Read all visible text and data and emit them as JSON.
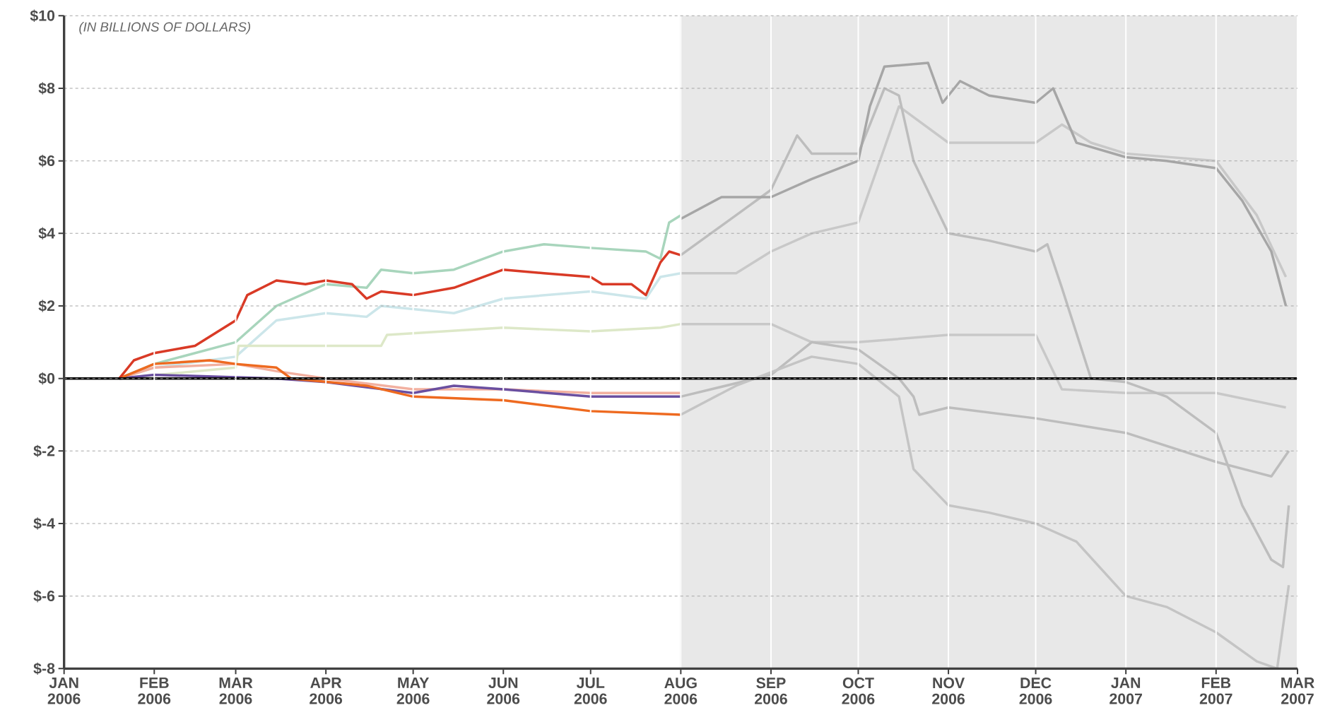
{
  "chart_data": {
    "type": "line",
    "annotations": [
      "(IN BILLIONS OF DOLLARS)"
    ],
    "xlim": [
      "2006-01-01",
      "2007-03-01"
    ],
    "xticks": [
      {
        "value": "2006-01-01",
        "label": "JAN 2006"
      },
      {
        "value": "2006-02-01",
        "label": "FEB 2006"
      },
      {
        "value": "2006-03-01",
        "label": "MAR 2006"
      },
      {
        "value": "2006-04-01",
        "label": "APR 2006"
      },
      {
        "value": "2006-05-01",
        "label": "MAY 2006"
      },
      {
        "value": "2006-06-01",
        "label": "JUN 2006"
      },
      {
        "value": "2006-07-01",
        "label": "JUL 2006"
      },
      {
        "value": "2006-08-01",
        "label": "AUG 2006"
      },
      {
        "value": "2006-09-01",
        "label": "SEP 2006"
      },
      {
        "value": "2006-10-01",
        "label": "OCT 2006"
      },
      {
        "value": "2006-11-01",
        "label": "NOV 2006"
      },
      {
        "value": "2006-12-01",
        "label": "DEC 2006"
      },
      {
        "value": "2007-01-01",
        "label": "JAN 2007"
      },
      {
        "value": "2007-02-01",
        "label": "FEB 2007"
      },
      {
        "value": "2007-03-01",
        "label": "MAR 2007"
      }
    ],
    "ylim": [
      -8,
      10
    ],
    "yticks": [
      {
        "value": -8,
        "label": "$-8"
      },
      {
        "value": -6,
        "label": "$-6"
      },
      {
        "value": -4,
        "label": "$-4"
      },
      {
        "value": -2,
        "label": "$-2"
      },
      {
        "value": 0,
        "label": "$0"
      },
      {
        "value": 2,
        "label": "$2"
      },
      {
        "value": 4,
        "label": "$4"
      },
      {
        "value": 6,
        "label": "$6"
      },
      {
        "value": 8,
        "label": "$8"
      },
      {
        "value": 10,
        "label": "$10"
      }
    ],
    "grid": true,
    "bands": [
      {
        "axis": "x",
        "from": "2006-08-01",
        "to": "2007-03-01",
        "color": "#e8e8e8"
      }
    ],
    "ref_lines": [
      {
        "axis": "y",
        "value": 0,
        "color": "#000000"
      },
      {
        "axis": "x",
        "value": "2006-08-01",
        "color": "#bfbfbf"
      }
    ],
    "series": [
      {
        "color": "#a8d5bc",
        "x": [
          "2006-01-20",
          "2006-02-01",
          "2006-03-01",
          "2006-03-15",
          "2006-04-01",
          "2006-04-15",
          "2006-04-20",
          "2006-05-01",
          "2006-05-15",
          "2006-06-01",
          "2006-06-15",
          "2006-07-01",
          "2006-07-20",
          "2006-07-25",
          "2006-07-28",
          "2006-08-01"
        ],
        "values": [
          0,
          0.4,
          1.0,
          2.0,
          2.6,
          2.5,
          3.0,
          2.9,
          3.0,
          3.5,
          3.7,
          3.6,
          3.5,
          3.3,
          4.3,
          4.5
        ]
      },
      {
        "color": "#cce6ea",
        "x": [
          "2006-01-20",
          "2006-02-01",
          "2006-03-01",
          "2006-03-15",
          "2006-04-01",
          "2006-04-15",
          "2006-04-20",
          "2006-05-15",
          "2006-06-01",
          "2006-07-01",
          "2006-07-20",
          "2006-07-25",
          "2006-08-01"
        ],
        "values": [
          0,
          0.3,
          0.6,
          1.6,
          1.8,
          1.7,
          2.0,
          1.8,
          2.2,
          2.4,
          2.2,
          2.8,
          2.9
        ]
      },
      {
        "color": "#dde8c8",
        "x": [
          "2006-01-20",
          "2006-03-01",
          "2006-03-02",
          "2006-04-20",
          "2006-04-22",
          "2006-06-01",
          "2006-07-01",
          "2006-07-25",
          "2006-08-01"
        ],
        "values": [
          0,
          0.3,
          0.9,
          0.9,
          1.2,
          1.4,
          1.3,
          1.4,
          1.5
        ]
      },
      {
        "color": "#f2b0a0",
        "x": [
          "2006-01-20",
          "2006-02-01",
          "2006-03-01",
          "2006-03-15",
          "2006-04-01",
          "2006-05-01",
          "2006-06-01",
          "2006-07-01",
          "2006-08-01"
        ],
        "values": [
          0,
          0.3,
          0.4,
          0.2,
          0.0,
          -0.3,
          -0.3,
          -0.4,
          -0.4
        ]
      },
      {
        "color": "#6a4fa0",
        "x": [
          "2006-01-20",
          "2006-02-01",
          "2006-03-15",
          "2006-04-01",
          "2006-05-01",
          "2006-05-15",
          "2006-06-01",
          "2006-07-01",
          "2006-08-01"
        ],
        "values": [
          0,
          0.1,
          0.0,
          -0.1,
          -0.4,
          -0.2,
          -0.3,
          -0.5,
          -0.5
        ]
      },
      {
        "color": "#ee6a20",
        "x": [
          "2006-01-20",
          "2006-02-01",
          "2006-02-20",
          "2006-03-01",
          "2006-03-15",
          "2006-03-20",
          "2006-04-15",
          "2006-05-01",
          "2006-06-01",
          "2006-07-01",
          "2006-08-01"
        ],
        "values": [
          0,
          0.4,
          0.5,
          0.4,
          0.3,
          0.0,
          -0.2,
          -0.5,
          -0.6,
          -0.9,
          -1.0
        ]
      },
      {
        "color": "#d93a26",
        "x": [
          "2006-01-20",
          "2006-01-25",
          "2006-02-01",
          "2006-02-15",
          "2006-03-01",
          "2006-03-05",
          "2006-03-15",
          "2006-03-25",
          "2006-04-01",
          "2006-04-10",
          "2006-04-15",
          "2006-04-20",
          "2006-05-01",
          "2006-05-15",
          "2006-06-01",
          "2006-06-15",
          "2006-07-01",
          "2006-07-05",
          "2006-07-15",
          "2006-07-20",
          "2006-07-25",
          "2006-07-28",
          "2006-08-01"
        ],
        "values": [
          0,
          0.5,
          0.7,
          0.9,
          1.6,
          2.3,
          2.7,
          2.6,
          2.7,
          2.6,
          2.2,
          2.4,
          2.3,
          2.5,
          3.0,
          2.9,
          2.8,
          2.6,
          2.6,
          2.3,
          3.2,
          3.5,
          3.4
        ]
      },
      {
        "color": "#c8c8c8",
        "x": [
          "2006-08-01",
          "2006-08-20",
          "2006-09-01",
          "2006-09-15",
          "2006-10-01",
          "2006-10-15",
          "2006-11-01",
          "2006-11-15",
          "2006-12-01",
          "2006-12-10",
          "2006-12-20",
          "2007-01-01",
          "2007-02-01",
          "2007-02-15",
          "2007-02-25"
        ],
        "values": [
          2.9,
          2.9,
          3.5,
          4.0,
          4.3,
          7.5,
          6.5,
          6.5,
          6.5,
          7.0,
          6.5,
          6.2,
          6.0,
          4.5,
          2.8
        ]
      },
      {
        "color": "#c8c8c8",
        "x": [
          "2006-08-01",
          "2006-09-01",
          "2006-09-15",
          "2006-10-01",
          "2006-11-01",
          "2006-12-01",
          "2006-12-10",
          "2007-01-01",
          "2007-02-01",
          "2007-02-25"
        ],
        "values": [
          1.5,
          1.5,
          1.0,
          1.0,
          1.2,
          1.2,
          -0.3,
          -0.4,
          -0.4,
          -0.8
        ]
      },
      {
        "color": "#bdbdbd",
        "x": [
          "2006-08-01",
          "2006-09-01",
          "2006-09-15",
          "2006-10-01",
          "2006-10-15",
          "2006-10-20",
          "2006-10-22",
          "2006-11-01",
          "2006-12-01",
          "2007-01-01",
          "2007-02-01",
          "2007-02-20",
          "2007-02-26"
        ],
        "values": [
          -0.5,
          0.1,
          1.0,
          0.8,
          0.0,
          -0.5,
          -1.0,
          -0.8,
          -1.1,
          -1.5,
          -2.3,
          -2.7,
          -2.0
        ]
      },
      {
        "color": "#bdbdbd",
        "x": [
          "2006-08-01",
          "2006-08-20",
          "2006-09-01",
          "2006-09-10",
          "2006-09-15",
          "2006-10-01",
          "2006-10-10",
          "2006-10-15",
          "2006-10-20",
          "2006-11-01",
          "2006-11-15",
          "2006-12-01",
          "2006-12-05",
          "2006-12-10",
          "2006-12-20",
          "2007-01-01",
          "2007-01-15",
          "2007-02-01",
          "2007-02-10",
          "2007-02-20",
          "2007-02-24",
          "2007-02-26"
        ],
        "values": [
          3.4,
          4.5,
          5.2,
          6.7,
          6.2,
          6.2,
          8.0,
          7.8,
          6.0,
          4.0,
          3.8,
          3.5,
          3.7,
          2.5,
          0.0,
          -0.1,
          -0.5,
          -1.5,
          -3.5,
          -5.0,
          -5.2,
          -3.5
        ]
      },
      {
        "color": "#c4c4c4",
        "x": [
          "2006-08-01",
          "2006-08-20",
          "2006-09-15",
          "2006-10-01",
          "2006-10-15",
          "2006-10-20",
          "2006-11-01",
          "2006-11-15",
          "2006-12-01",
          "2006-12-15",
          "2007-01-01",
          "2007-01-15",
          "2007-02-01",
          "2007-02-15",
          "2007-02-22",
          "2007-02-26"
        ],
        "values": [
          -1.0,
          -0.2,
          0.6,
          0.4,
          -0.5,
          -2.5,
          -3.5,
          -3.7,
          -4.0,
          -4.5,
          -6.0,
          -6.3,
          -7.0,
          -7.8,
          -8.0,
          -5.7
        ]
      },
      {
        "color": "#a6a6a6",
        "x": [
          "2006-08-01",
          "2006-08-15",
          "2006-09-01",
          "2006-09-15",
          "2006-10-01",
          "2006-10-05",
          "2006-10-10",
          "2006-10-25",
          "2006-10-30",
          "2006-11-05",
          "2006-11-15",
          "2006-12-01",
          "2006-12-07",
          "2006-12-15",
          "2007-01-01",
          "2007-01-15",
          "2007-02-01",
          "2007-02-10",
          "2007-02-20",
          "2007-02-25"
        ],
        "values": [
          4.4,
          5.0,
          5.0,
          5.5,
          6.0,
          7.5,
          8.6,
          8.7,
          7.6,
          8.2,
          7.8,
          7.6,
          8.0,
          6.5,
          6.1,
          6.0,
          5.8,
          4.9,
          3.5,
          2.0
        ]
      }
    ]
  }
}
